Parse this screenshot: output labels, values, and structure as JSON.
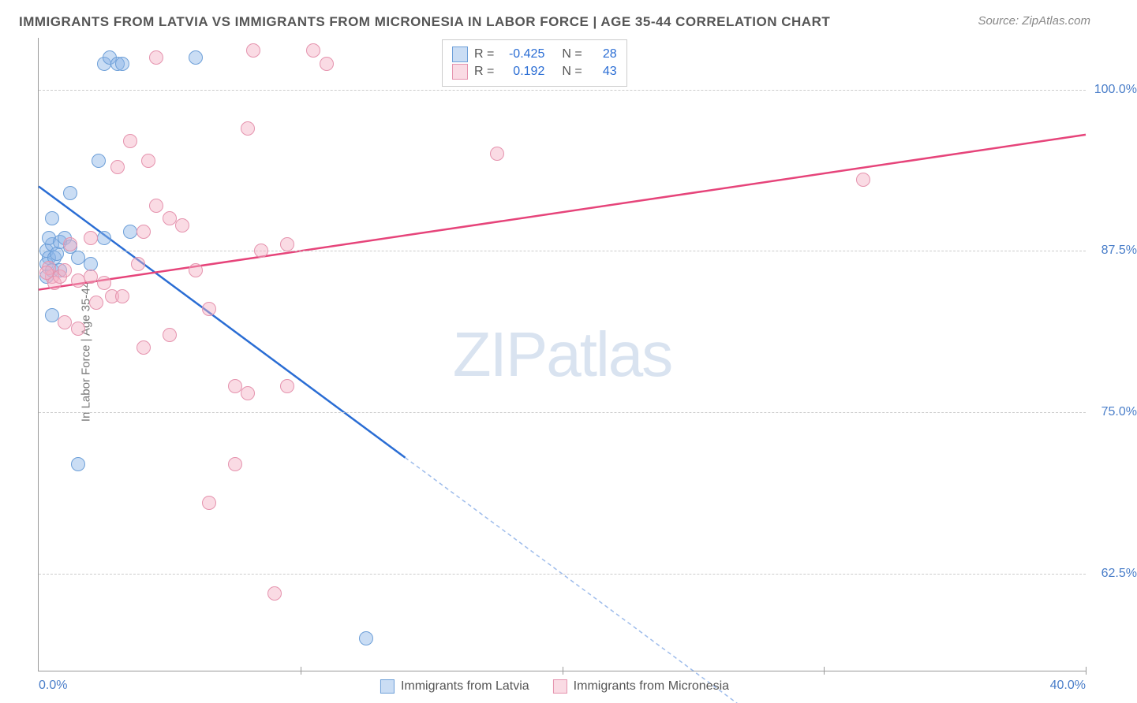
{
  "title": "IMMIGRANTS FROM LATVIA VS IMMIGRANTS FROM MICRONESIA IN LABOR FORCE | AGE 35-44 CORRELATION CHART",
  "source": "Source: ZipAtlas.com",
  "watermark_bold": "ZIP",
  "watermark_thin": "atlas",
  "chart": {
    "type": "scatter",
    "y_axis_title": "In Labor Force | Age 35-44",
    "x_range": [
      0,
      40
    ],
    "y_range": [
      55,
      104
    ],
    "y_ticks": [
      62.5,
      75.0,
      87.5,
      100.0
    ],
    "y_tick_labels": [
      "62.5%",
      "75.0%",
      "87.5%",
      "100.0%"
    ],
    "x_ticks": [
      0,
      10,
      20,
      30,
      40
    ],
    "x_end_labels": [
      "0.0%",
      "40.0%"
    ],
    "grid_color": "#cccccc",
    "background_color": "#ffffff",
    "axis_color": "#999999",
    "tick_label_color": "#4a7ec9",
    "series": [
      {
        "name": "Immigrants from Latvia",
        "fill_color": "rgba(138,180,230,0.45)",
        "stroke_color": "#6d9fd8",
        "line_color": "#2a6dd4",
        "r_value": "-0.425",
        "n_value": "28",
        "regression": {
          "x0": 0,
          "y0": 92.5,
          "x1": 14,
          "y1": 71.5,
          "x1_ext": 27,
          "y1_ext": 52
        },
        "points": [
          [
            0.3,
            87.5
          ],
          [
            0.4,
            87
          ],
          [
            0.3,
            86.5
          ],
          [
            0.5,
            88
          ],
          [
            0.6,
            87
          ],
          [
            0.4,
            88.5
          ],
          [
            0.3,
            85.5
          ],
          [
            0.5,
            86
          ],
          [
            0.7,
            87.3
          ],
          [
            0.8,
            88.2
          ],
          [
            1.2,
            92
          ],
          [
            1.0,
            88.5
          ],
          [
            0.5,
            90
          ],
          [
            2.3,
            94.5
          ],
          [
            2.5,
            102
          ],
          [
            2.7,
            102.5
          ],
          [
            3.0,
            102
          ],
          [
            1.5,
            87
          ],
          [
            2.0,
            86.5
          ],
          [
            2.5,
            88.5
          ],
          [
            3.5,
            89
          ],
          [
            6.0,
            102.5
          ],
          [
            3.2,
            102
          ],
          [
            1.5,
            71
          ],
          [
            0.5,
            82.5
          ],
          [
            1.2,
            87.8
          ],
          [
            0.8,
            86
          ],
          [
            12.5,
            57.5
          ]
        ]
      },
      {
        "name": "Immigrants from Micronesia",
        "fill_color": "rgba(244,176,196,0.45)",
        "stroke_color": "#e593ae",
        "line_color": "#e6447a",
        "r_value": "0.192",
        "n_value": "43",
        "regression": {
          "x0": 0,
          "y0": 84.5,
          "x1": 40,
          "y1": 96.5
        },
        "points": [
          [
            0.5,
            85.5
          ],
          [
            0.6,
            85
          ],
          [
            0.8,
            85.5
          ],
          [
            1.0,
            86
          ],
          [
            0.4,
            86.2
          ],
          [
            0.3,
            85.8
          ],
          [
            1.5,
            85.2
          ],
          [
            2.0,
            85.5
          ],
          [
            1.2,
            88
          ],
          [
            2.5,
            85
          ],
          [
            1.0,
            82
          ],
          [
            2.2,
            83.5
          ],
          [
            2.8,
            84
          ],
          [
            3.2,
            84
          ],
          [
            3.5,
            96
          ],
          [
            4.0,
            89
          ],
          [
            4.5,
            91
          ],
          [
            5.0,
            90
          ],
          [
            3.0,
            94
          ],
          [
            4.2,
            94.5
          ],
          [
            5.5,
            89.5
          ],
          [
            6.5,
            83
          ],
          [
            5.0,
            81
          ],
          [
            8.5,
            87.5
          ],
          [
            9.5,
            88
          ],
          [
            8.0,
            97
          ],
          [
            7.5,
            77
          ],
          [
            8.0,
            76.5
          ],
          [
            6.5,
            68
          ],
          [
            7.5,
            71
          ],
          [
            9.0,
            61
          ],
          [
            8.2,
            103
          ],
          [
            10.5,
            103
          ],
          [
            11.0,
            102
          ],
          [
            9.5,
            77
          ],
          [
            4.0,
            80
          ],
          [
            1.5,
            81.5
          ],
          [
            3.8,
            86.5
          ],
          [
            17.5,
            95
          ],
          [
            31.5,
            93
          ],
          [
            4.5,
            102.5
          ],
          [
            2.0,
            88.5
          ],
          [
            6.0,
            86
          ]
        ]
      }
    ],
    "legend_labels": {
      "r_prefix": "R =",
      "n_prefix": "N ="
    },
    "x_legend": [
      {
        "label": "Immigrants from Latvia",
        "fill": "rgba(138,180,230,0.45)",
        "stroke": "#6d9fd8"
      },
      {
        "label": "Immigrants from Micronesia",
        "fill": "rgba(244,176,196,0.45)",
        "stroke": "#e593ae"
      }
    ]
  }
}
